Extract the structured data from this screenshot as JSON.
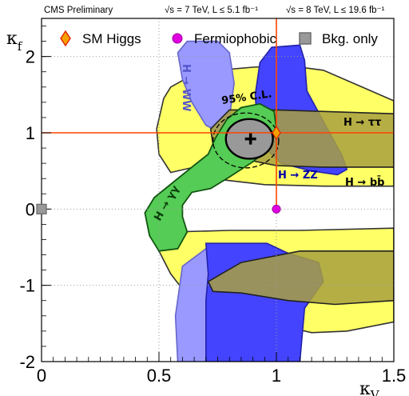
{
  "header": {
    "left": "CMS Preliminary",
    "energy_7": "√s = 7 TeV, L ≤ 5.1 fb⁻¹",
    "energy_8": "√s = 8 TeV, L ≤ 19.6 fb⁻¹"
  },
  "legend": [
    {
      "label": "SM Higgs",
      "marker": "diamond",
      "color": "#f5a000",
      "edge": "#e02000"
    },
    {
      "label": "Fermiophobic",
      "marker": "circle",
      "color": "#e000e0",
      "edge": "#a000a0"
    },
    {
      "label": "Bkg. only",
      "marker": "square",
      "color": "#999999",
      "edge": "#666666"
    }
  ],
  "region_labels": {
    "ww": "H → WW",
    "tautau": "H → ττ",
    "zz": "H → ZZ",
    "bb": "H → bb̄",
    "gammagamma": "H → γγ",
    "cl": "95% C.L."
  },
  "colors": {
    "bb": "#ffff66",
    "ww": "#9999ff",
    "zz": "#4444ff",
    "tautau": "#a8a040",
    "gammagamma": "#55cc55",
    "combined": "#999999",
    "sm_line": "#ff4400",
    "grid": "#999999"
  },
  "chart_data": {
    "type": "scatter",
    "xlabel": "κV",
    "ylabel": "κf",
    "xlim": [
      0,
      1.5
    ],
    "ylim": [
      -2,
      2.5
    ],
    "x_ticks": [
      0,
      0.5,
      1,
      1.5
    ],
    "y_ticks": [
      -2,
      -1,
      0,
      1,
      2
    ],
    "x_tick_labels": [
      "0",
      "0.5",
      "1",
      "1.5"
    ],
    "y_tick_labels": [
      "-2",
      "-1",
      "0",
      "1",
      "2"
    ],
    "grid": true,
    "legend_position": "top",
    "points": [
      {
        "name": "best fit",
        "x": 0.89,
        "y": 0.92,
        "marker": "cross"
      },
      {
        "name": "SM Higgs",
        "x": 1.0,
        "y": 1.0,
        "marker": "diamond"
      },
      {
        "name": "Fermiophobic",
        "x": 1.0,
        "y": 0.0,
        "marker": "circle"
      },
      {
        "name": "Bkg. only",
        "x": 0.0,
        "y": 0.0,
        "marker": "square"
      }
    ],
    "sm_lines": {
      "x": 1.0,
      "y": 1.0
    },
    "regions": [
      {
        "name": "bb",
        "upper_band": [
          [
            0.52,
            1.45
          ],
          [
            0.55,
            1.6
          ],
          [
            0.62,
            1.72
          ],
          [
            0.75,
            1.82
          ],
          [
            0.9,
            1.86
          ],
          [
            1.05,
            1.88
          ],
          [
            1.2,
            1.82
          ],
          [
            1.35,
            1.62
          ],
          [
            1.5,
            1.42
          ],
          [
            1.5,
            0.3
          ],
          [
            1.2,
            0.3
          ],
          [
            0.95,
            0.32
          ],
          [
            0.78,
            0.38
          ],
          [
            0.7,
            0.5
          ],
          [
            0.65,
            0.55
          ],
          [
            0.55,
            0.48
          ],
          [
            0.5,
            0.72
          ],
          [
            0.49,
            1.05
          ]
        ],
        "lower_band": [
          [
            0.5,
            -0.55
          ],
          [
            0.56,
            -0.3
          ],
          [
            0.8,
            -0.28
          ],
          [
            1.1,
            -0.28
          ],
          [
            1.5,
            -0.25
          ],
          [
            1.5,
            -1.48
          ],
          [
            1.3,
            -1.6
          ],
          [
            1.15,
            -1.62
          ],
          [
            1.05,
            -1.55
          ],
          [
            0.95,
            -1.35
          ],
          [
            0.85,
            -1.1
          ],
          [
            0.6,
            -1.05
          ],
          [
            0.55,
            -0.85
          ]
        ]
      },
      {
        "name": "ww",
        "upper_band": [
          [
            0.58,
            2.05
          ],
          [
            0.62,
            2.2
          ],
          [
            0.75,
            2.2
          ],
          [
            0.8,
            2.05
          ],
          [
            0.82,
            1.65
          ],
          [
            0.8,
            1.2
          ],
          [
            0.76,
            1.0
          ],
          [
            0.7,
            1.1
          ],
          [
            0.64,
            1.4
          ],
          [
            0.6,
            1.7
          ]
        ],
        "lower_band": [
          [
            0.6,
            -0.75
          ],
          [
            0.7,
            -0.52
          ],
          [
            0.82,
            -0.45
          ],
          [
            0.86,
            -0.7
          ],
          [
            0.88,
            -1.2
          ],
          [
            0.92,
            -2.0
          ],
          [
            0.58,
            -2.0
          ],
          [
            0.57,
            -1.4
          ]
        ]
      },
      {
        "name": "zz",
        "upper_band": [
          [
            0.93,
            1.92
          ],
          [
            0.98,
            2.12
          ],
          [
            1.1,
            2.15
          ],
          [
            1.12,
            1.95
          ],
          [
            1.13,
            1.55
          ],
          [
            1.2,
            1.15
          ],
          [
            1.28,
            0.7
          ],
          [
            1.3,
            0.52
          ],
          [
            1.26,
            0.45
          ],
          [
            1.15,
            0.5
          ],
          [
            1.02,
            0.6
          ],
          [
            0.96,
            0.78
          ],
          [
            0.92,
            1.05
          ],
          [
            0.91,
            1.5
          ]
        ],
        "lower_band": [
          [
            0.7,
            -0.45
          ],
          [
            0.82,
            -0.45
          ],
          [
            0.96,
            -0.45
          ],
          [
            1.05,
            -0.58
          ],
          [
            1.18,
            -0.7
          ],
          [
            1.2,
            -0.95
          ],
          [
            1.12,
            -1.3
          ],
          [
            1.1,
            -2.0
          ],
          [
            0.7,
            -2.0
          ],
          [
            0.7,
            -1.2
          ],
          [
            0.71,
            -0.85
          ]
        ]
      },
      {
        "name": "tautau",
        "upper_band": [
          [
            0.72,
            1.05
          ],
          [
            0.8,
            1.3
          ],
          [
            1.0,
            1.3
          ],
          [
            1.2,
            1.28
          ],
          [
            1.5,
            1.25
          ],
          [
            1.5,
            0.55
          ],
          [
            1.2,
            0.55
          ],
          [
            1.0,
            0.57
          ],
          [
            0.82,
            0.68
          ],
          [
            0.73,
            0.85
          ]
        ],
        "lower_band": [
          [
            0.71,
            -0.95
          ],
          [
            0.85,
            -0.7
          ],
          [
            1.1,
            -0.55
          ],
          [
            1.5,
            -0.55
          ],
          [
            1.5,
            -1.2
          ],
          [
            1.25,
            -1.25
          ],
          [
            1.05,
            -1.2
          ],
          [
            0.85,
            -1.1
          ],
          [
            0.73,
            -1.08
          ]
        ]
      },
      {
        "name": "gammagamma",
        "band": [
          [
            0.46,
            -0.35
          ],
          [
            0.44,
            -0.05
          ],
          [
            0.48,
            0.15
          ],
          [
            0.56,
            0.35
          ],
          [
            0.64,
            0.55
          ],
          [
            0.71,
            0.72
          ],
          [
            0.74,
            0.93
          ],
          [
            0.79,
            1.18
          ],
          [
            0.85,
            1.33
          ],
          [
            0.93,
            1.38
          ],
          [
            0.99,
            1.28
          ],
          [
            1.0,
            1.05
          ],
          [
            0.97,
            0.8
          ],
          [
            0.9,
            0.62
          ],
          [
            0.8,
            0.42
          ],
          [
            0.72,
            0.27
          ],
          [
            0.64,
            0.22
          ],
          [
            0.6,
            0.05
          ],
          [
            0.6,
            -0.1
          ],
          [
            0.62,
            -0.3
          ],
          [
            0.58,
            -0.52
          ],
          [
            0.5,
            -0.55
          ]
        ]
      },
      {
        "name": "combined_68",
        "center": [
          0.885,
          0.92
        ],
        "rx": 0.1,
        "ry": 0.26
      },
      {
        "name": "combined_95",
        "center": [
          0.87,
          0.9
        ],
        "rx": 0.14,
        "ry": 0.36
      }
    ]
  }
}
